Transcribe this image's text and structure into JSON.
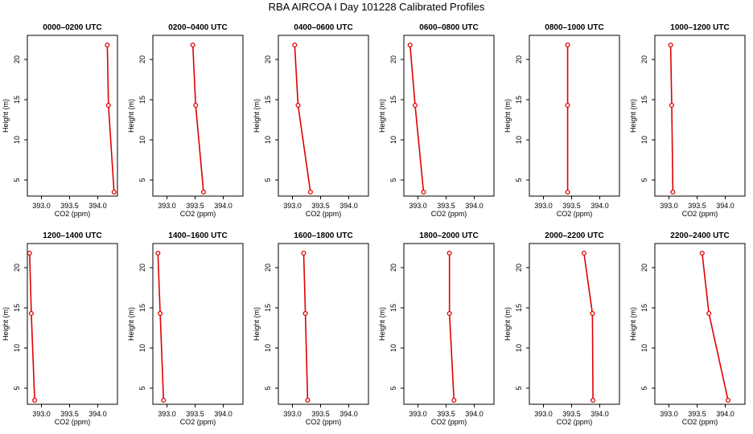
{
  "title": "RBA AIRCOA I  Day 101228  Calibrated Profiles",
  "colors": {
    "profile": "#e00000",
    "axis": "#000000"
  },
  "chart_data": [
    {
      "type": "line",
      "title": "0000–0200 UTC",
      "xlabel": "CO2 (ppm)",
      "ylabel": "Height (m)",
      "xticks": [
        "393.0",
        "393.5",
        "394.0"
      ],
      "yticks": [
        "5",
        "10",
        "15",
        "20"
      ],
      "xlim": [
        392.75,
        394.35
      ],
      "ylim": [
        3,
        23
      ],
      "series": [
        {
          "name": "profile",
          "x": [
            394.29,
            394.19,
            394.17
          ],
          "y": [
            3.5,
            14.3,
            21.8
          ]
        }
      ]
    },
    {
      "type": "line",
      "title": "0200–0400 UTC",
      "xlabel": "CO2 (ppm)",
      "ylabel": "Height (m)",
      "xticks": [
        "393.0",
        "393.5",
        "394.0"
      ],
      "yticks": [
        "5",
        "10",
        "15",
        "20"
      ],
      "xlim": [
        392.75,
        394.35
      ],
      "ylim": [
        3,
        23
      ],
      "series": [
        {
          "name": "profile",
          "x": [
            393.65,
            393.51,
            393.46
          ],
          "y": [
            3.5,
            14.3,
            21.8
          ]
        }
      ]
    },
    {
      "type": "line",
      "title": "0400–0600 UTC",
      "xlabel": "CO2 (ppm)",
      "ylabel": "Height (m)",
      "xticks": [
        "393.0",
        "393.5",
        "394.0"
      ],
      "yticks": [
        "5",
        "10",
        "15",
        "20"
      ],
      "xlim": [
        392.75,
        394.35
      ],
      "ylim": [
        3,
        23
      ],
      "series": [
        {
          "name": "profile",
          "x": [
            393.32,
            393.1,
            393.04
          ],
          "y": [
            3.5,
            14.3,
            21.8
          ]
        }
      ]
    },
    {
      "type": "line",
      "title": "0600–0800 UTC",
      "xlabel": "CO2 (ppm)",
      "ylabel": "Height (m)",
      "xticks": [
        "393.0",
        "393.5",
        "394.0"
      ],
      "yticks": [
        "5",
        "10",
        "15",
        "20"
      ],
      "xlim": [
        392.75,
        394.35
      ],
      "ylim": [
        3,
        23
      ],
      "series": [
        {
          "name": "profile",
          "x": [
            393.1,
            392.95,
            392.86
          ],
          "y": [
            3.5,
            14.3,
            21.8
          ]
        }
      ]
    },
    {
      "type": "line",
      "title": "0800–1000 UTC",
      "xlabel": "CO2 (ppm)",
      "ylabel": "Height (m)",
      "xticks": [
        "393.0",
        "393.5",
        "394.0"
      ],
      "yticks": [
        "5",
        "10",
        "15",
        "20"
      ],
      "xlim": [
        392.75,
        394.35
      ],
      "ylim": [
        3,
        23
      ],
      "series": [
        {
          "name": "profile",
          "x": [
            393.43,
            393.43,
            393.43
          ],
          "y": [
            3.5,
            14.3,
            21.8
          ]
        }
      ]
    },
    {
      "type": "line",
      "title": "1000–1200 UTC",
      "xlabel": "CO2 (ppm)",
      "ylabel": "Height (m)",
      "xticks": [
        "393.0",
        "393.5",
        "394.0"
      ],
      "yticks": [
        "5",
        "10",
        "15",
        "20"
      ],
      "xlim": [
        392.75,
        394.35
      ],
      "ylim": [
        3,
        23
      ],
      "series": [
        {
          "name": "profile",
          "x": [
            393.07,
            393.05,
            393.03
          ],
          "y": [
            3.5,
            14.3,
            21.8
          ]
        }
      ]
    },
    {
      "type": "line",
      "title": "1200–1400 UTC",
      "xlabel": "CO2 (ppm)",
      "ylabel": "Height (m)",
      "xticks": [
        "393.0",
        "393.5",
        "394.0"
      ],
      "yticks": [
        "5",
        "10",
        "15",
        "20"
      ],
      "xlim": [
        392.75,
        394.35
      ],
      "ylim": [
        3,
        23
      ],
      "series": [
        {
          "name": "profile",
          "x": [
            392.88,
            392.82,
            392.79
          ],
          "y": [
            3.5,
            14.3,
            21.8
          ]
        }
      ]
    },
    {
      "type": "line",
      "title": "1400–1600 UTC",
      "xlabel": "CO2 (ppm)",
      "ylabel": "Height (m)",
      "xticks": [
        "393.0",
        "393.5",
        "394.0"
      ],
      "yticks": [
        "5",
        "10",
        "15",
        "20"
      ],
      "xlim": [
        392.75,
        394.35
      ],
      "ylim": [
        3,
        23
      ],
      "series": [
        {
          "name": "profile",
          "x": [
            392.94,
            392.88,
            392.84
          ],
          "y": [
            3.5,
            14.3,
            21.8
          ]
        }
      ]
    },
    {
      "type": "line",
      "title": "1600–1800 UTC",
      "xlabel": "CO2 (ppm)",
      "ylabel": "Height (m)",
      "xticks": [
        "393.0",
        "393.5",
        "394.0"
      ],
      "yticks": [
        "5",
        "10",
        "15",
        "20"
      ],
      "xlim": [
        392.75,
        394.35
      ],
      "ylim": [
        3,
        23
      ],
      "series": [
        {
          "name": "profile",
          "x": [
            393.27,
            393.23,
            393.2
          ],
          "y": [
            3.5,
            14.3,
            21.8
          ]
        }
      ]
    },
    {
      "type": "line",
      "title": "1800–2000 UTC",
      "xlabel": "CO2 (ppm)",
      "ylabel": "Height (m)",
      "xticks": [
        "393.0",
        "393.5",
        "394.0"
      ],
      "yticks": [
        "5",
        "10",
        "15",
        "20"
      ],
      "xlim": [
        392.75,
        394.35
      ],
      "ylim": [
        3,
        23
      ],
      "series": [
        {
          "name": "profile",
          "x": [
            393.64,
            393.56,
            393.56
          ],
          "y": [
            3.5,
            14.3,
            21.8
          ]
        }
      ]
    },
    {
      "type": "line",
      "title": "2000–2200 UTC",
      "xlabel": "CO2 (ppm)",
      "ylabel": "Height (m)",
      "xticks": [
        "393.0",
        "393.5",
        "394.0"
      ],
      "yticks": [
        "5",
        "10",
        "15",
        "20"
      ],
      "xlim": [
        392.75,
        394.35
      ],
      "ylim": [
        3,
        23
      ],
      "series": [
        {
          "name": "profile",
          "x": [
            393.88,
            393.87,
            393.72
          ],
          "y": [
            3.5,
            14.3,
            21.8
          ]
        }
      ]
    },
    {
      "type": "line",
      "title": "2200–2400 UTC",
      "xlabel": "CO2 (ppm)",
      "ylabel": "Height (m)",
      "xticks": [
        "393.0",
        "393.5",
        "394.0"
      ],
      "yticks": [
        "5",
        "10",
        "15",
        "20"
      ],
      "xlim": [
        392.75,
        394.35
      ],
      "ylim": [
        3,
        23
      ],
      "series": [
        {
          "name": "profile",
          "x": [
            394.05,
            393.71,
            393.59
          ],
          "y": [
            3.5,
            14.3,
            21.8
          ]
        }
      ]
    }
  ]
}
